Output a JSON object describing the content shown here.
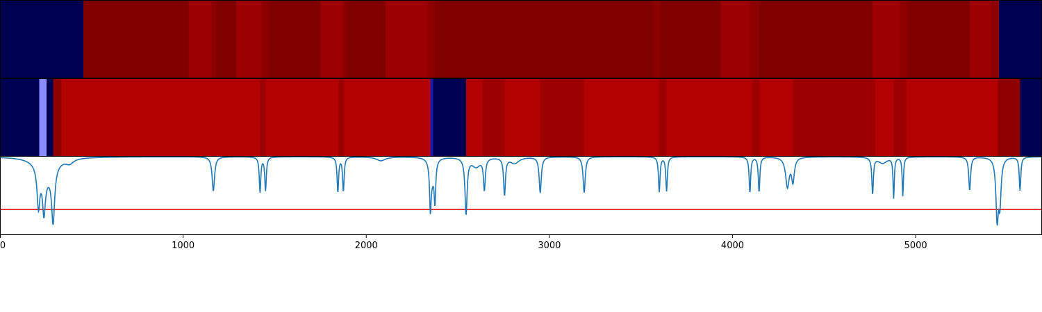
{
  "chart_data": {
    "type": "heatmap",
    "title": "",
    "xlabel": "",
    "ylabel": "",
    "xlim": [
      0,
      5690
    ],
    "grid": false,
    "legend": "none",
    "x_ticks": [
      0,
      1000,
      2000,
      3000,
      4000,
      5000
    ],
    "x_tick_labels": [
      "0",
      "1000",
      "2000",
      "3000",
      "4000",
      "5000"
    ],
    "colors": {
      "dark_blue": "#000050",
      "light_blue": "#8c8cff",
      "mid_blue": "#1a1aa8",
      "dark_red": "#800000",
      "red": "#9c0000",
      "deep_red": "#8c0000",
      "bright_red": "#b30000",
      "trace_line": "#1f77b4",
      "threshold_line": "#e31a1c"
    },
    "segment_rows": [
      {
        "segments": [
          {
            "start": 0,
            "end": 455,
            "color": "dark_blue"
          },
          {
            "start": 455,
            "end": 1030,
            "color": "dark_red"
          },
          {
            "start": 1030,
            "end": 1155,
            "color": "red"
          },
          {
            "start": 1155,
            "end": 1180,
            "color": "deep_red"
          },
          {
            "start": 1180,
            "end": 1290,
            "color": "dark_red"
          },
          {
            "start": 1290,
            "end": 1430,
            "color": "red"
          },
          {
            "start": 1430,
            "end": 1470,
            "color": "deep_red"
          },
          {
            "start": 1470,
            "end": 1750,
            "color": "dark_red"
          },
          {
            "start": 1750,
            "end": 1870,
            "color": "red"
          },
          {
            "start": 1870,
            "end": 1895,
            "color": "deep_red"
          },
          {
            "start": 1895,
            "end": 2105,
            "color": "dark_red"
          },
          {
            "start": 2105,
            "end": 2335,
            "color": "red"
          },
          {
            "start": 2335,
            "end": 2375,
            "color": "deep_red"
          },
          {
            "start": 2375,
            "end": 3565,
            "color": "dark_red"
          },
          {
            "start": 3565,
            "end": 3605,
            "color": "deep_red"
          },
          {
            "start": 3605,
            "end": 3935,
            "color": "dark_red"
          },
          {
            "start": 3935,
            "end": 4095,
            "color": "red"
          },
          {
            "start": 4095,
            "end": 4145,
            "color": "deep_red"
          },
          {
            "start": 4145,
            "end": 4765,
            "color": "dark_red"
          },
          {
            "start": 4765,
            "end": 4915,
            "color": "red"
          },
          {
            "start": 4915,
            "end": 4960,
            "color": "deep_red"
          },
          {
            "start": 4960,
            "end": 5295,
            "color": "dark_red"
          },
          {
            "start": 5295,
            "end": 5410,
            "color": "red"
          },
          {
            "start": 5410,
            "end": 5455,
            "color": "deep_red"
          },
          {
            "start": 5455,
            "end": 5690,
            "color": "dark_blue"
          }
        ]
      },
      {
        "segments": [
          {
            "start": 0,
            "end": 215,
            "color": "dark_blue"
          },
          {
            "start": 215,
            "end": 255,
            "color": "light_blue"
          },
          {
            "start": 255,
            "end": 290,
            "color": "dark_blue"
          },
          {
            "start": 290,
            "end": 335,
            "color": "deep_red"
          },
          {
            "start": 335,
            "end": 1420,
            "color": "bright_red"
          },
          {
            "start": 1420,
            "end": 1450,
            "color": "red"
          },
          {
            "start": 1450,
            "end": 1850,
            "color": "bright_red"
          },
          {
            "start": 1850,
            "end": 1880,
            "color": "red"
          },
          {
            "start": 1880,
            "end": 2350,
            "color": "bright_red"
          },
          {
            "start": 2350,
            "end": 2365,
            "color": "mid_blue"
          },
          {
            "start": 2365,
            "end": 2545,
            "color": "dark_blue"
          },
          {
            "start": 2545,
            "end": 2635,
            "color": "bright_red"
          },
          {
            "start": 2635,
            "end": 2755,
            "color": "red"
          },
          {
            "start": 2755,
            "end": 2950,
            "color": "bright_red"
          },
          {
            "start": 2950,
            "end": 3190,
            "color": "red"
          },
          {
            "start": 3190,
            "end": 3600,
            "color": "bright_red"
          },
          {
            "start": 3600,
            "end": 3640,
            "color": "red"
          },
          {
            "start": 3640,
            "end": 4110,
            "color": "bright_red"
          },
          {
            "start": 4110,
            "end": 4150,
            "color": "red"
          },
          {
            "start": 4150,
            "end": 4330,
            "color": "bright_red"
          },
          {
            "start": 4330,
            "end": 4780,
            "color": "red"
          },
          {
            "start": 4780,
            "end": 4880,
            "color": "bright_red"
          },
          {
            "start": 4880,
            "end": 4950,
            "color": "red"
          },
          {
            "start": 4950,
            "end": 5310,
            "color": "bright_red"
          },
          {
            "start": 5310,
            "end": 5450,
            "color": "bright_red"
          },
          {
            "start": 5450,
            "end": 5570,
            "color": "deep_red"
          },
          {
            "start": 5570,
            "end": 5690,
            "color": "dark_blue"
          }
        ]
      }
    ],
    "trace": {
      "y_range": [
        -1.0,
        0.0
      ],
      "threshold": -0.68,
      "baseline": 0.0,
      "dips": [
        {
          "x": 210,
          "depth": -0.5,
          "width": 9
        },
        {
          "x": 240,
          "depth": -0.48,
          "width": 9
        },
        {
          "x": 290,
          "depth": -0.7,
          "width": 10
        },
        {
          "x": 250,
          "depth": -0.25,
          "width": 50
        },
        {
          "x": 380,
          "depth": -0.06,
          "width": 25
        },
        {
          "x": 1165,
          "depth": -0.44,
          "width": 8
        },
        {
          "x": 1420,
          "depth": -0.45,
          "width": 5
        },
        {
          "x": 1450,
          "depth": -0.43,
          "width": 5
        },
        {
          "x": 1845,
          "depth": -0.45,
          "width": 5
        },
        {
          "x": 1875,
          "depth": -0.44,
          "width": 5
        },
        {
          "x": 2080,
          "depth": -0.05,
          "width": 30
        },
        {
          "x": 2350,
          "depth": -0.55,
          "width": 5
        },
        {
          "x": 2375,
          "depth": -0.5,
          "width": 5
        },
        {
          "x": 2360,
          "depth": -0.25,
          "width": 14
        },
        {
          "x": 2545,
          "depth": -0.72,
          "width": 7
        },
        {
          "x": 2600,
          "depth": -0.12,
          "width": 30
        },
        {
          "x": 2645,
          "depth": -0.4,
          "width": 6
        },
        {
          "x": 2755,
          "depth": -0.48,
          "width": 6
        },
        {
          "x": 2950,
          "depth": -0.46,
          "width": 7
        },
        {
          "x": 2810,
          "depth": -0.08,
          "width": 30
        },
        {
          "x": 3190,
          "depth": -0.46,
          "width": 7
        },
        {
          "x": 3600,
          "depth": -0.45,
          "width": 5
        },
        {
          "x": 3640,
          "depth": -0.44,
          "width": 5
        },
        {
          "x": 4095,
          "depth": -0.46,
          "width": 5
        },
        {
          "x": 4145,
          "depth": -0.45,
          "width": 5
        },
        {
          "x": 4300,
          "depth": -0.38,
          "width": 12
        },
        {
          "x": 4330,
          "depth": -0.3,
          "width": 9
        },
        {
          "x": 4765,
          "depth": -0.47,
          "width": 5
        },
        {
          "x": 4820,
          "depth": -0.08,
          "width": 30
        },
        {
          "x": 4880,
          "depth": -0.52,
          "width": 4
        },
        {
          "x": 4930,
          "depth": -0.5,
          "width": 4
        },
        {
          "x": 5295,
          "depth": -0.43,
          "width": 6
        },
        {
          "x": 5445,
          "depth": -0.76,
          "width": 8
        },
        {
          "x": 5460,
          "depth": -0.55,
          "width": 8
        },
        {
          "x": 5570,
          "depth": -0.43,
          "width": 5
        }
      ]
    }
  }
}
